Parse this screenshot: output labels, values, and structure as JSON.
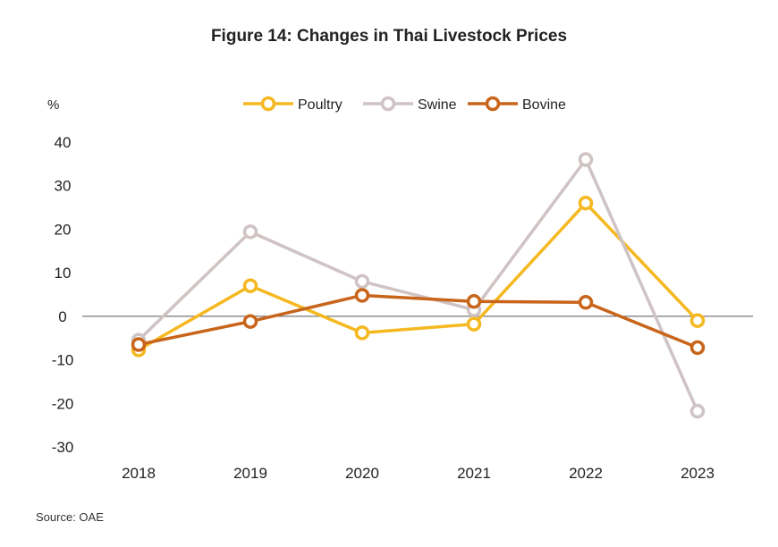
{
  "chart_data": {
    "type": "line",
    "title": "Figure 14: Changes in Thai Livestock Prices",
    "ylabel": "%",
    "xlabel": "",
    "categories": [
      "2018",
      "2019",
      "2020",
      "2021",
      "2022",
      "2023"
    ],
    "ylim": [
      -30,
      40
    ],
    "yticks": [
      40,
      30,
      20,
      10,
      0,
      -10,
      -20,
      -30
    ],
    "yticklabels": [
      "40",
      "30",
      "20",
      "10",
      "0",
      "-10",
      "-20",
      "-30"
    ],
    "legend_position": "top",
    "grid": false,
    "series": [
      {
        "name": "Poultry",
        "color": "#F5B820",
        "values": [
          -7.7,
          7.0,
          -3.8,
          -1.8,
          26.0,
          -1.0
        ]
      },
      {
        "name": "Swine",
        "color": "#CFC3C4",
        "values": [
          -5.5,
          19.4,
          8.0,
          1.5,
          36.0,
          -21.8
        ]
      },
      {
        "name": "Bovine",
        "color": "#C8651B",
        "values": [
          -6.5,
          -1.2,
          4.8,
          3.4,
          3.2,
          -7.2
        ]
      }
    ],
    "source": "Source: OAE"
  }
}
